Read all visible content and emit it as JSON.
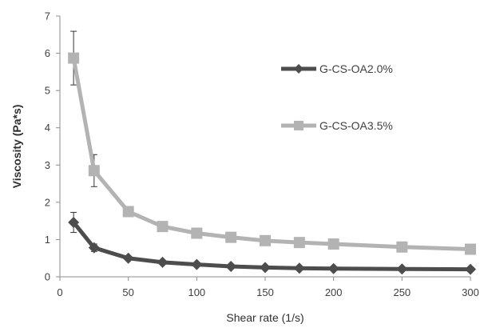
{
  "chart_data": {
    "type": "line",
    "xlabel": "Shear rate (1/s)",
    "ylabel": "Viscosity (Pa*s)",
    "xlim": [
      0,
      300
    ],
    "ylim": [
      0,
      7
    ],
    "x_ticks": [
      "0",
      "50",
      "100",
      "150",
      "200",
      "250",
      "300"
    ],
    "y_ticks": [
      "0",
      "1",
      "2",
      "3",
      "4",
      "5",
      "6",
      "7"
    ],
    "grid": false,
    "legend_position": "right",
    "x": [
      10,
      25,
      50,
      75,
      100,
      125,
      150,
      175,
      200,
      250,
      300
    ],
    "series": [
      {
        "name": "G-CS-OA2.0%",
        "color": "#4d4d4d",
        "marker": "diamond",
        "values": [
          1.46,
          0.78,
          0.5,
          0.39,
          0.33,
          0.28,
          0.25,
          0.23,
          0.22,
          0.21,
          0.2
        ],
        "error": [
          0.27,
          0.1,
          0,
          0,
          0,
          0,
          0,
          0,
          0,
          0,
          0
        ]
      },
      {
        "name": "G-CS-OA3.5%",
        "color": "#b3b3b3",
        "marker": "square",
        "values": [
          5.87,
          2.85,
          1.75,
          1.35,
          1.17,
          1.06,
          0.97,
          0.92,
          0.88,
          0.8,
          0.74
        ],
        "error": [
          0.72,
          0.43,
          0,
          0,
          0,
          0,
          0,
          0,
          0,
          0,
          0
        ]
      }
    ]
  }
}
